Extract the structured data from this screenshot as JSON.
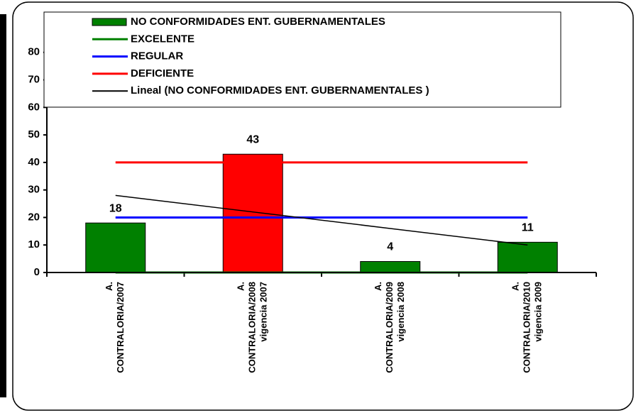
{
  "chart_data": {
    "type": "bar",
    "categories": [
      [
        "A.",
        "CONTRALORIA/2007"
      ],
      [
        "A.",
        "CONTRALORIA/2008",
        "vigencia 2007"
      ],
      [
        "A.",
        "CONTRALORIA/2009",
        "vigencia 2008"
      ],
      [
        "A.",
        "CONTRALORIA/2010",
        "vigencia 2009"
      ]
    ],
    "series": [
      {
        "name": "NO CONFORMIDADES ENT. GUBERNAMENTALES",
        "type": "bar",
        "color": "#008000",
        "colors": [
          "#008000",
          "#ff0000",
          "#008000",
          "#008000"
        ],
        "values": [
          18,
          43,
          4,
          11
        ]
      },
      {
        "name": "EXCELENTE",
        "type": "line",
        "color": "#008000",
        "values": [
          0,
          0,
          0,
          0
        ]
      },
      {
        "name": "REGULAR",
        "type": "line",
        "color": "#0000ff",
        "values": [
          20,
          20,
          20,
          20
        ]
      },
      {
        "name": "DEFICIENTE",
        "type": "line",
        "color": "#ff0000",
        "values": [
          40,
          40,
          40,
          40
        ]
      },
      {
        "name": "Lineal (NO CONFORMIDADES ENT. GUBERNAMENTALES )",
        "type": "line",
        "color": "#000000",
        "values": [
          28,
          22,
          16,
          10
        ]
      }
    ],
    "ylim": [
      0,
      90
    ],
    "yticks": [
      0,
      10,
      20,
      30,
      40,
      50,
      60,
      70,
      80
    ]
  }
}
